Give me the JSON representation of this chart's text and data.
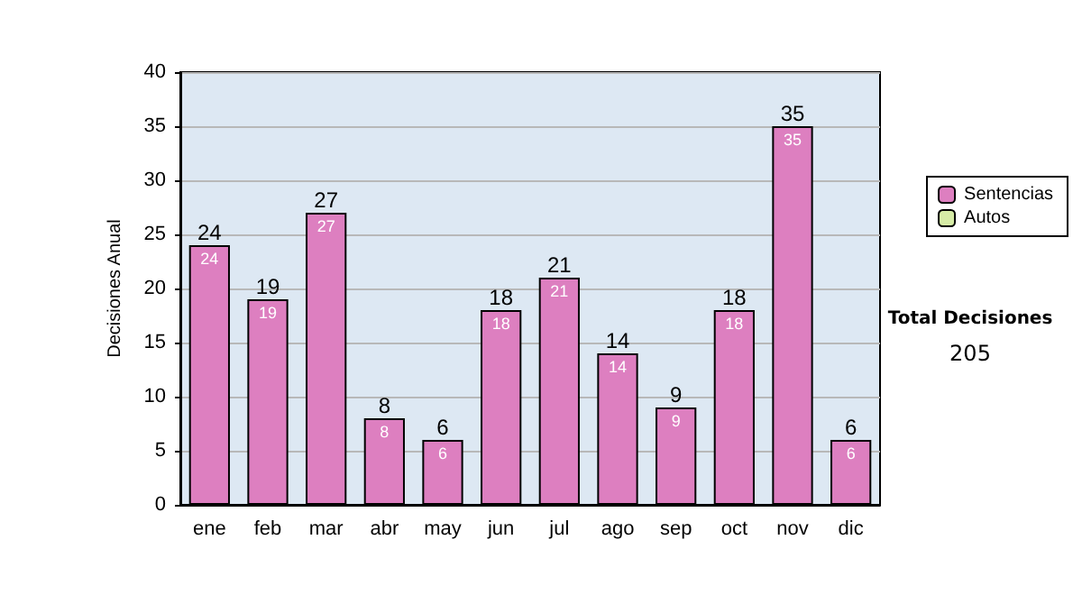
{
  "chart_data": {
    "type": "bar",
    "ylabel": "Decisiones Anual",
    "categories": [
      "ene",
      "feb",
      "mar",
      "abr",
      "may",
      "jun",
      "jul",
      "ago",
      "sep",
      "oct",
      "nov",
      "dic"
    ],
    "series": [
      {
        "name": "Sentencias",
        "color": "#dd7fc0",
        "values": [
          24,
          19,
          27,
          8,
          6,
          18,
          21,
          14,
          9,
          18,
          35,
          6
        ],
        "value_labels": [
          "24",
          "19",
          "27",
          "8",
          "6",
          "18",
          "21",
          "14",
          "9",
          "18",
          "35",
          "6"
        ]
      },
      {
        "name": "Autos",
        "color": "#d6eca6",
        "values": [
          0,
          0,
          0,
          0,
          0,
          0,
          0,
          0,
          0,
          0,
          0,
          0
        ]
      }
    ],
    "stacked": true,
    "totals": [
      "24",
      "19",
      "27",
      "8",
      "6",
      "18",
      "21",
      "14",
      "9",
      "18",
      "35",
      "6"
    ],
    "ylim": [
      0,
      40
    ],
    "yticks": [
      0,
      5,
      10,
      15,
      20,
      25,
      30,
      35,
      40
    ],
    "grid": "y",
    "legend": "right",
    "annotations": [
      "Total Decisiones",
      "205"
    ]
  }
}
